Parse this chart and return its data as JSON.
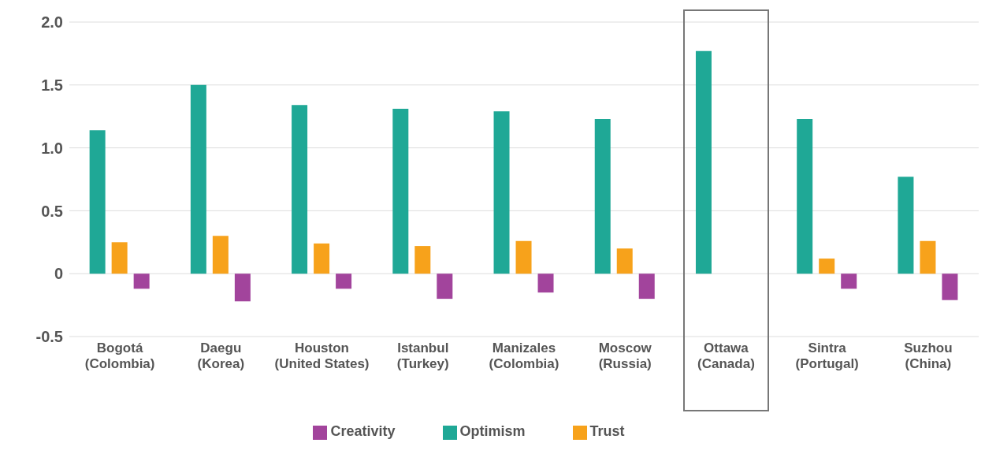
{
  "chart_data": {
    "type": "bar",
    "categories": [
      "Bogotá (Colombia)",
      "Daegu (Korea)",
      "Houston (United States)",
      "Istanbul (Turkey)",
      "Manizales (Colombia)",
      "Moscow (Russia)",
      "Ottawa (Canada)",
      "Sintra (Portugal)",
      "Suzhou (China)"
    ],
    "series": [
      {
        "name": "Optimism",
        "color": "#1fa896",
        "values": [
          1.14,
          1.5,
          1.34,
          1.31,
          1.29,
          1.23,
          1.77,
          1.23,
          0.77
        ]
      },
      {
        "name": "Trust",
        "color": "#f7a21b",
        "values": [
          0.25,
          0.3,
          0.24,
          0.22,
          0.26,
          0.2,
          null,
          0.12,
          0.26
        ]
      },
      {
        "name": "Creativity",
        "color": "#a2449c",
        "values": [
          -0.12,
          -0.22,
          -0.12,
          -0.2,
          -0.15,
          -0.2,
          null,
          -0.12,
          -0.21
        ]
      }
    ],
    "ylim": [
      -0.5,
      2.0
    ],
    "yticks": [
      {
        "value": -0.5,
        "label": "-0.5"
      },
      0,
      0.5,
      {
        "value": 1,
        "label": "1.0"
      },
      1.5,
      {
        "value": 2,
        "label": "2.0"
      }
    ],
    "grid": "y",
    "legend": "bottom"
  }
}
